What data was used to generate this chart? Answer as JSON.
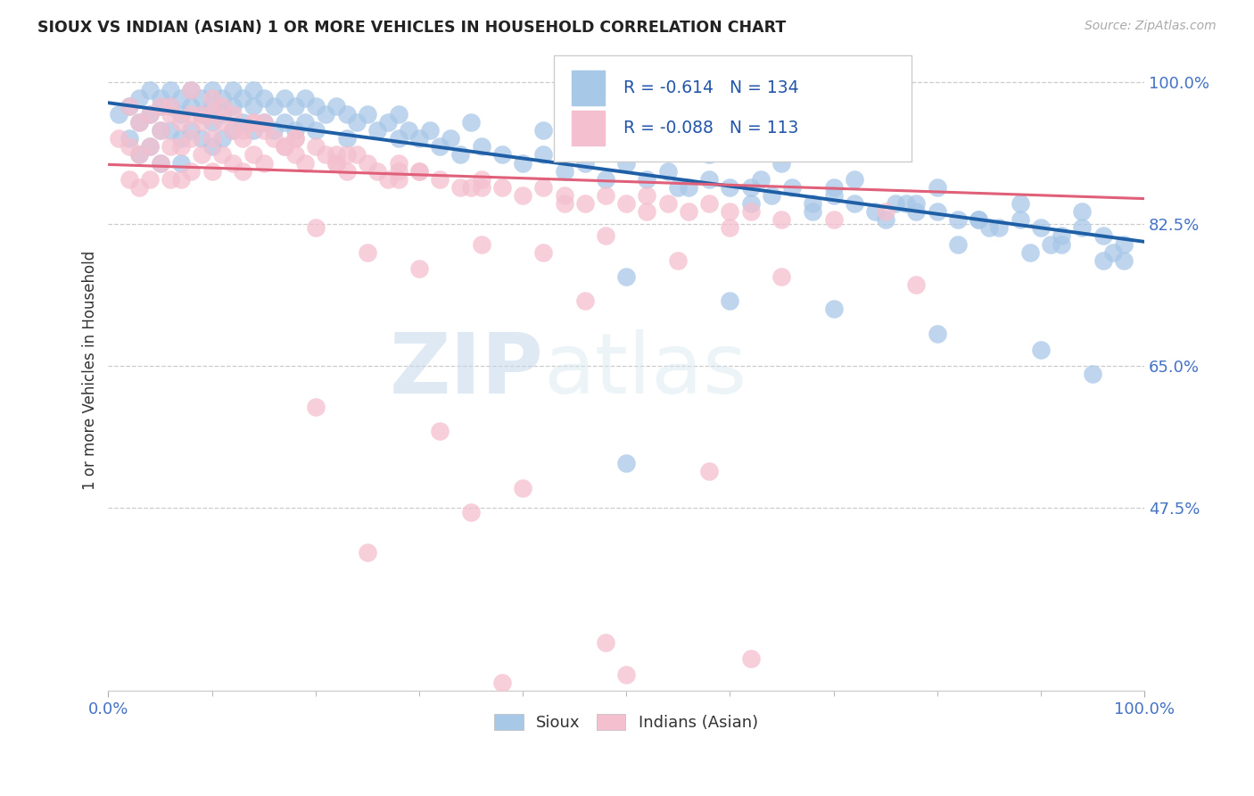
{
  "title": "SIOUX VS INDIAN (ASIAN) 1 OR MORE VEHICLES IN HOUSEHOLD CORRELATION CHART",
  "source_text": "Source: ZipAtlas.com",
  "ylabel": "1 or more Vehicles in Household",
  "xmin": 0.0,
  "xmax": 1.0,
  "ymin": 0.25,
  "ymax": 1.04,
  "yticks": [
    0.475,
    0.65,
    0.825,
    1.0
  ],
  "ytick_labels": [
    "47.5%",
    "65.0%",
    "82.5%",
    "100.0%"
  ],
  "xtick_labels": [
    "0.0%",
    "100.0%"
  ],
  "xticks": [
    0.0,
    1.0
  ],
  "blue_R": -0.614,
  "blue_N": 134,
  "pink_R": -0.088,
  "pink_N": 113,
  "blue_color": "#a8c8e8",
  "blue_edge_color": "#a8c8e8",
  "blue_line_color": "#1f5fa6",
  "pink_color": "#f4bfce",
  "pink_edge_color": "#f4bfce",
  "pink_line_color": "#e0607a",
  "watermark_zip": "ZIP",
  "watermark_atlas": "atlas",
  "legend_label_blue": "Sioux",
  "legend_label_pink": "Indians (Asian)",
  "blue_line_x0": 0.0,
  "blue_line_y0": 0.974,
  "blue_line_x1": 1.0,
  "blue_line_y1": 0.803,
  "pink_line_x0": 0.0,
  "pink_line_y0": 0.898,
  "pink_line_x1": 1.0,
  "pink_line_y1": 0.856,
  "blue_points_x": [
    0.01,
    0.02,
    0.02,
    0.03,
    0.03,
    0.03,
    0.04,
    0.04,
    0.04,
    0.05,
    0.05,
    0.05,
    0.05,
    0.06,
    0.06,
    0.06,
    0.07,
    0.07,
    0.07,
    0.07,
    0.08,
    0.08,
    0.08,
    0.09,
    0.09,
    0.09,
    0.1,
    0.1,
    0.1,
    0.1,
    0.11,
    0.11,
    0.11,
    0.12,
    0.12,
    0.12,
    0.13,
    0.13,
    0.14,
    0.14,
    0.14,
    0.15,
    0.15,
    0.16,
    0.16,
    0.17,
    0.17,
    0.18,
    0.18,
    0.19,
    0.19,
    0.2,
    0.2,
    0.21,
    0.22,
    0.23,
    0.23,
    0.24,
    0.25,
    0.26,
    0.27,
    0.28,
    0.29,
    0.3,
    0.31,
    0.32,
    0.33,
    0.34,
    0.36,
    0.38,
    0.4,
    0.42,
    0.44,
    0.46,
    0.48,
    0.5,
    0.52,
    0.54,
    0.56,
    0.58,
    0.6,
    0.62,
    0.64,
    0.66,
    0.68,
    0.7,
    0.72,
    0.74,
    0.76,
    0.78,
    0.8,
    0.82,
    0.84,
    0.86,
    0.88,
    0.9,
    0.92,
    0.94,
    0.96,
    0.98,
    0.28,
    0.35,
    0.42,
    0.52,
    0.58,
    0.65,
    0.72,
    0.8,
    0.88,
    0.94,
    0.5,
    0.6,
    0.7,
    0.8,
    0.9,
    0.95,
    0.55,
    0.62,
    0.68,
    0.75,
    0.82,
    0.89,
    0.96,
    0.78,
    0.85,
    0.92,
    0.97,
    0.63,
    0.7,
    0.77,
    0.84,
    0.91,
    0.98,
    0.5
  ],
  "blue_points_y": [
    0.96,
    0.97,
    0.93,
    0.98,
    0.95,
    0.91,
    0.99,
    0.96,
    0.92,
    0.98,
    0.97,
    0.94,
    0.9,
    0.99,
    0.97,
    0.94,
    0.98,
    0.96,
    0.93,
    0.9,
    0.99,
    0.97,
    0.94,
    0.98,
    0.96,
    0.93,
    0.99,
    0.97,
    0.95,
    0.92,
    0.98,
    0.96,
    0.93,
    0.99,
    0.97,
    0.94,
    0.98,
    0.95,
    0.99,
    0.97,
    0.94,
    0.98,
    0.95,
    0.97,
    0.94,
    0.98,
    0.95,
    0.97,
    0.94,
    0.98,
    0.95,
    0.97,
    0.94,
    0.96,
    0.97,
    0.96,
    0.93,
    0.95,
    0.96,
    0.94,
    0.95,
    0.93,
    0.94,
    0.93,
    0.94,
    0.92,
    0.93,
    0.91,
    0.92,
    0.91,
    0.9,
    0.91,
    0.89,
    0.9,
    0.88,
    0.9,
    0.88,
    0.89,
    0.87,
    0.88,
    0.87,
    0.87,
    0.86,
    0.87,
    0.85,
    0.86,
    0.85,
    0.84,
    0.85,
    0.84,
    0.84,
    0.83,
    0.83,
    0.82,
    0.83,
    0.82,
    0.81,
    0.82,
    0.81,
    0.8,
    0.96,
    0.95,
    0.94,
    0.93,
    0.91,
    0.9,
    0.88,
    0.87,
    0.85,
    0.84,
    0.76,
    0.73,
    0.72,
    0.69,
    0.67,
    0.64,
    0.87,
    0.85,
    0.84,
    0.83,
    0.8,
    0.79,
    0.78,
    0.85,
    0.82,
    0.8,
    0.79,
    0.88,
    0.87,
    0.85,
    0.83,
    0.8,
    0.78,
    0.53
  ],
  "pink_points_x": [
    0.01,
    0.02,
    0.02,
    0.02,
    0.03,
    0.03,
    0.03,
    0.04,
    0.04,
    0.04,
    0.05,
    0.05,
    0.05,
    0.06,
    0.06,
    0.06,
    0.07,
    0.07,
    0.07,
    0.08,
    0.08,
    0.08,
    0.09,
    0.09,
    0.1,
    0.1,
    0.1,
    0.11,
    0.11,
    0.12,
    0.12,
    0.13,
    0.13,
    0.14,
    0.14,
    0.15,
    0.15,
    0.16,
    0.17,
    0.18,
    0.19,
    0.2,
    0.21,
    0.22,
    0.23,
    0.24,
    0.25,
    0.26,
    0.27,
    0.28,
    0.3,
    0.32,
    0.34,
    0.36,
    0.38,
    0.4,
    0.42,
    0.44,
    0.46,
    0.48,
    0.5,
    0.52,
    0.54,
    0.56,
    0.58,
    0.6,
    0.62,
    0.65,
    0.7,
    0.75,
    0.1,
    0.12,
    0.15,
    0.18,
    0.22,
    0.28,
    0.35,
    0.08,
    0.11,
    0.14,
    0.18,
    0.23,
    0.3,
    0.06,
    0.09,
    0.13,
    0.17,
    0.22,
    0.28,
    0.36,
    0.44,
    0.52,
    0.6,
    0.2,
    0.48,
    0.36,
    0.25,
    0.42,
    0.55,
    0.3,
    0.65,
    0.78,
    0.46,
    0.2,
    0.32,
    0.58,
    0.4,
    0.35,
    0.25,
    0.48,
    0.62,
    0.5,
    0.38
  ],
  "pink_points_y": [
    0.93,
    0.97,
    0.92,
    0.88,
    0.95,
    0.91,
    0.87,
    0.96,
    0.92,
    0.88,
    0.97,
    0.94,
    0.9,
    0.96,
    0.92,
    0.88,
    0.95,
    0.92,
    0.88,
    0.96,
    0.93,
    0.89,
    0.95,
    0.91,
    0.96,
    0.93,
    0.89,
    0.95,
    0.91,
    0.94,
    0.9,
    0.93,
    0.89,
    0.95,
    0.91,
    0.94,
    0.9,
    0.93,
    0.92,
    0.91,
    0.9,
    0.92,
    0.91,
    0.9,
    0.89,
    0.91,
    0.9,
    0.89,
    0.88,
    0.9,
    0.89,
    0.88,
    0.87,
    0.88,
    0.87,
    0.86,
    0.87,
    0.86,
    0.85,
    0.86,
    0.85,
    0.86,
    0.85,
    0.84,
    0.85,
    0.84,
    0.84,
    0.83,
    0.83,
    0.84,
    0.98,
    0.96,
    0.95,
    0.93,
    0.91,
    0.89,
    0.87,
    0.99,
    0.97,
    0.95,
    0.93,
    0.91,
    0.89,
    0.97,
    0.96,
    0.94,
    0.92,
    0.9,
    0.88,
    0.87,
    0.85,
    0.84,
    0.82,
    0.82,
    0.81,
    0.8,
    0.79,
    0.79,
    0.78,
    0.77,
    0.76,
    0.75,
    0.73,
    0.6,
    0.57,
    0.52,
    0.5,
    0.47,
    0.42,
    0.31,
    0.29,
    0.27,
    0.26
  ]
}
